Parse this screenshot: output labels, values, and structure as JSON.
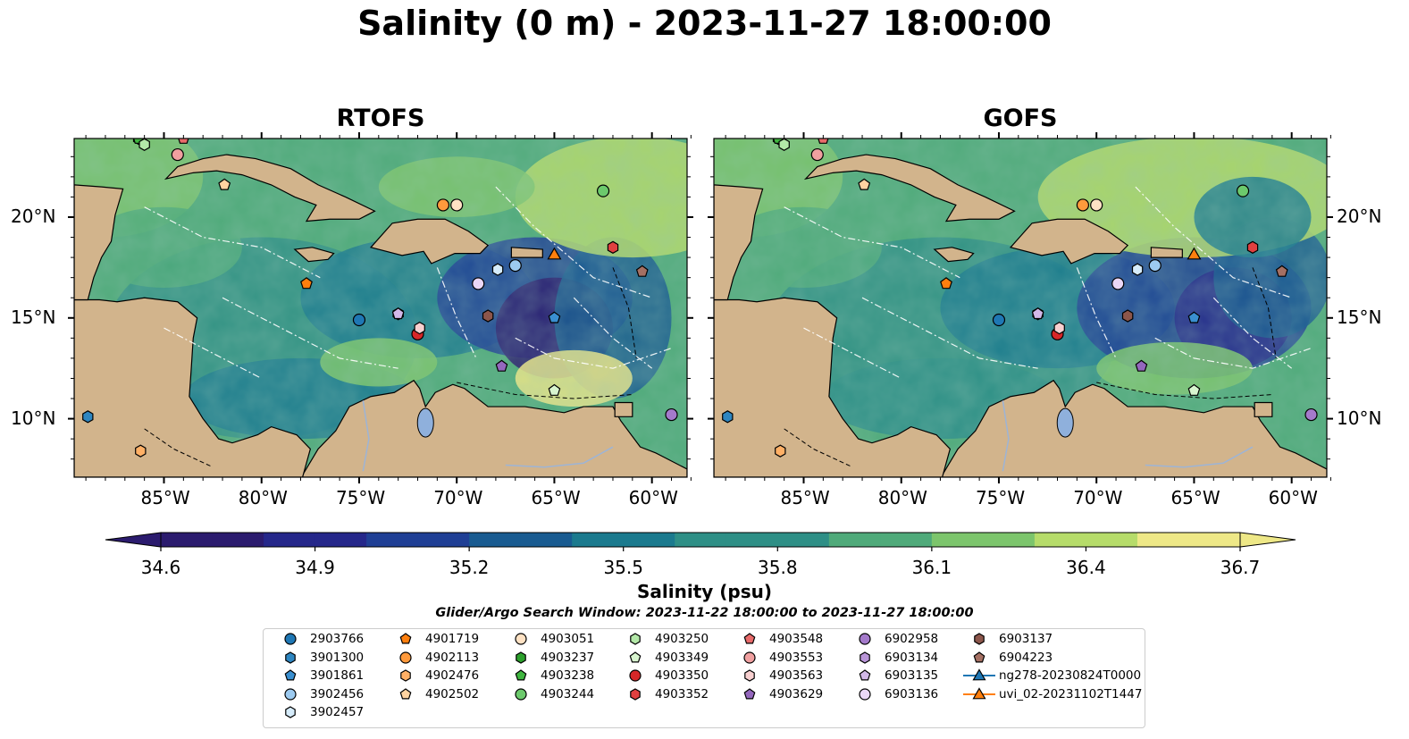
{
  "title": "Salinity (0 m) - 2023-11-27 18:00:00",
  "panels": [
    {
      "title": "RTOFS"
    },
    {
      "title": "GOFS"
    }
  ],
  "axes": {
    "lon_labels": [
      "85°W",
      "80°W",
      "75°W",
      "70°W",
      "65°W",
      "60°W"
    ],
    "lat_labels": [
      "20°N",
      "15°N",
      "10°N"
    ]
  },
  "colorbar": {
    "label": "Salinity (psu)",
    "ticks": [
      "34.6",
      "34.9",
      "35.2",
      "35.5",
      "35.8",
      "36.1",
      "36.4",
      "36.7"
    ],
    "vmin": 34.6,
    "vmax": 36.7,
    "colors": [
      "#2b1b6e",
      "#25278a",
      "#1f3f95",
      "#195b91",
      "#1b7a8e",
      "#2e8f86",
      "#4faa7a",
      "#7cc56c",
      "#b6dc6a",
      "#eee887"
    ]
  },
  "search_window": "Glider/Argo Search Window: 2023-11-22 18:00:00 to 2023-11-27 18:00:00",
  "legend": [
    {
      "label": "2903766",
      "marker": "circle",
      "color": "#1f77b4"
    },
    {
      "label": "3901300",
      "marker": "hexagon",
      "color": "#2e86c1"
    },
    {
      "label": "3901861",
      "marker": "pentagon",
      "color": "#3a8fd0"
    },
    {
      "label": "3902456",
      "marker": "circle",
      "color": "#9ccaf0"
    },
    {
      "label": "3902457",
      "marker": "hexagon",
      "color": "#d6ecfb"
    },
    {
      "label": "4901719",
      "marker": "pentagon",
      "color": "#ff7f0e"
    },
    {
      "label": "4902113",
      "marker": "circle",
      "color": "#ff9a3c"
    },
    {
      "label": "4902476",
      "marker": "hexagon",
      "color": "#ffb066"
    },
    {
      "label": "4902502",
      "marker": "pentagon",
      "color": "#ffd3a1"
    },
    {
      "label": "4903051",
      "marker": "circle",
      "color": "#ffe2c4"
    },
    {
      "label": "4903237",
      "marker": "hexagon",
      "color": "#2ca02c"
    },
    {
      "label": "4903238",
      "marker": "pentagon",
      "color": "#3fb53f"
    },
    {
      "label": "4903244",
      "marker": "circle",
      "color": "#6cc96c"
    },
    {
      "label": "4903250",
      "marker": "hexagon",
      "color": "#b3e8a8"
    },
    {
      "label": "4903349",
      "marker": "pentagon",
      "color": "#d8f5cf"
    },
    {
      "label": "4903350",
      "marker": "circle",
      "color": "#d62728"
    },
    {
      "label": "4903352",
      "marker": "hexagon",
      "color": "#e04040"
    },
    {
      "label": "4903548",
      "marker": "pentagon",
      "color": "#e86a6a"
    },
    {
      "label": "4903553",
      "marker": "circle",
      "color": "#f0a0a0"
    },
    {
      "label": "4903563",
      "marker": "hexagon",
      "color": "#f8d0d0"
    },
    {
      "label": "4903629",
      "marker": "pentagon",
      "color": "#9467bd"
    },
    {
      "label": "6902958",
      "marker": "circle",
      "color": "#a47acb"
    },
    {
      "label": "6903134",
      "marker": "hexagon",
      "color": "#b995d8"
    },
    {
      "label": "6903135",
      "marker": "pentagon",
      "color": "#d2b8e8"
    },
    {
      "label": "6903136",
      "marker": "circle",
      "color": "#ead7f6"
    },
    {
      "label": "6903137",
      "marker": "hexagon",
      "color": "#8c564b"
    },
    {
      "label": "6904223",
      "marker": "pentagon",
      "color": "#a57063"
    },
    {
      "label": "ng278-20230824T0000",
      "marker": "triangle-line",
      "color": "#1f77b4"
    },
    {
      "label": "uvi_02-20231102T1447",
      "marker": "triangle-line",
      "color": "#ff7f0e"
    }
  ],
  "map": {
    "land_color": "#d2b48c",
    "lake_color": "#8fb0dc",
    "river_color": "#9db4d6"
  },
  "floats": [
    {
      "id": "2903766",
      "lon": -75.0,
      "lat": 14.9
    },
    {
      "id": "3901300",
      "lon": -88.9,
      "lat": 10.1
    },
    {
      "id": "3901861",
      "lon": -65.0,
      "lat": 15.0
    },
    {
      "id": "3902456",
      "lon": -67.0,
      "lat": 17.6
    },
    {
      "id": "3902457",
      "lon": -67.9,
      "lat": 17.4
    },
    {
      "id": "4901719",
      "lon": -77.7,
      "lat": 16.7
    },
    {
      "id": "4902113",
      "lon": -70.7,
      "lat": 20.6
    },
    {
      "id": "4902476",
      "lon": -86.2,
      "lat": 8.4
    },
    {
      "id": "4902502",
      "lon": -81.9,
      "lat": 21.6
    },
    {
      "id": "4903051",
      "lon": -70.0,
      "lat": 20.6
    },
    {
      "id": "4903237",
      "lon": -86.3,
      "lat": 23.9
    },
    {
      "id": "4903238",
      "lon": -86.3,
      "lat": 23.9
    },
    {
      "id": "4903244",
      "lon": -62.5,
      "lat": 21.3
    },
    {
      "id": "4903250",
      "lon": -86.0,
      "lat": 23.6
    },
    {
      "id": "4903349",
      "lon": -65.0,
      "lat": 11.4
    },
    {
      "id": "4903350",
      "lon": -72.0,
      "lat": 14.2
    },
    {
      "id": "4903352",
      "lon": -62.0,
      "lat": 18.5
    },
    {
      "id": "4903548",
      "lon": -84.0,
      "lat": 23.9
    },
    {
      "id": "4903553",
      "lon": -84.3,
      "lat": 23.1
    },
    {
      "id": "4903563",
      "lon": -71.9,
      "lat": 14.5
    },
    {
      "id": "4903629",
      "lon": -67.7,
      "lat": 12.6
    },
    {
      "id": "6902958",
      "lon": -59.0,
      "lat": 10.2
    },
    {
      "id": "6903134",
      "lon": -73.0,
      "lat": 15.2
    },
    {
      "id": "6903135",
      "lon": -73.0,
      "lat": 15.2
    },
    {
      "id": "6903136",
      "lon": -68.9,
      "lat": 16.7
    },
    {
      "id": "6903137",
      "lon": -68.4,
      "lat": 15.1
    },
    {
      "id": "6904223",
      "lon": -60.5,
      "lat": 17.3
    }
  ],
  "gliders": [
    {
      "id": "uvi_02-20231102T1447",
      "lon": -65.0,
      "lat": 18.1
    }
  ]
}
